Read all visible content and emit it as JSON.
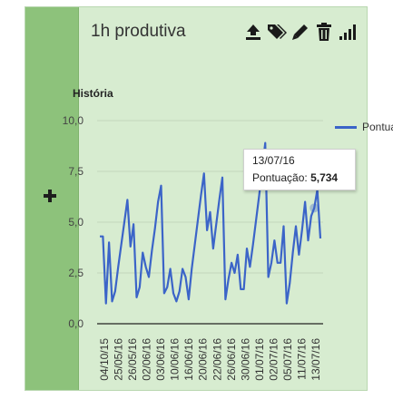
{
  "card": {
    "title": "1h produtiva",
    "add_symbol": "+",
    "toolbar": {
      "icons": [
        "upload-icon",
        "tag-icon",
        "pencil-icon",
        "trash-icon",
        "signal-bars-icon"
      ]
    }
  },
  "chart_data": {
    "type": "line",
    "title": "História",
    "xlabel": "",
    "ylabel": "",
    "ylim": [
      0,
      10
    ],
    "yticks": [
      "10,0",
      "7,5",
      "5,0",
      "2,5",
      "0,0"
    ],
    "grid": true,
    "legend_position": "right",
    "x_tick_labels": [
      "04/10/15",
      "25/05/16",
      "26/05/16",
      "02/06/16",
      "03/06/16",
      "10/06/16",
      "16/06/16",
      "20/06/16",
      "22/06/16",
      "26/06/16",
      "30/06/16",
      "01/07/16",
      "02/07/16",
      "05/07/16",
      "11/07/16",
      "13/07/16"
    ],
    "series": [
      {
        "name": "Pontuação",
        "color": "#3b64c8",
        "values": [
          4.3,
          4.3,
          1.0,
          4.0,
          1.1,
          1.6,
          2.8,
          3.9,
          5.0,
          6.1,
          3.8,
          4.9,
          1.3,
          1.8,
          3.5,
          2.8,
          2.3,
          3.6,
          4.7,
          6.0,
          6.8,
          1.5,
          1.8,
          2.7,
          1.5,
          1.1,
          1.6,
          2.7,
          2.3,
          1.2,
          2.7,
          3.9,
          5.1,
          6.3,
          7.4,
          4.6,
          5.5,
          3.7,
          4.9,
          6.1,
          7.2,
          1.2,
          2.2,
          3.0,
          2.5,
          3.4,
          1.7,
          1.7,
          3.7,
          2.8,
          3.9,
          5.1,
          6.3,
          7.6,
          8.9,
          2.3,
          3.0,
          4.1,
          3.0,
          3.0,
          4.8,
          1.0,
          2.0,
          3.5,
          4.8,
          3.4,
          4.6,
          6.0,
          4.1,
          5.3,
          5.7,
          6.6,
          4.2
        ]
      }
    ],
    "tooltip": {
      "date": "13/07/16",
      "label": "Pontuação:",
      "value": "5,734"
    }
  }
}
